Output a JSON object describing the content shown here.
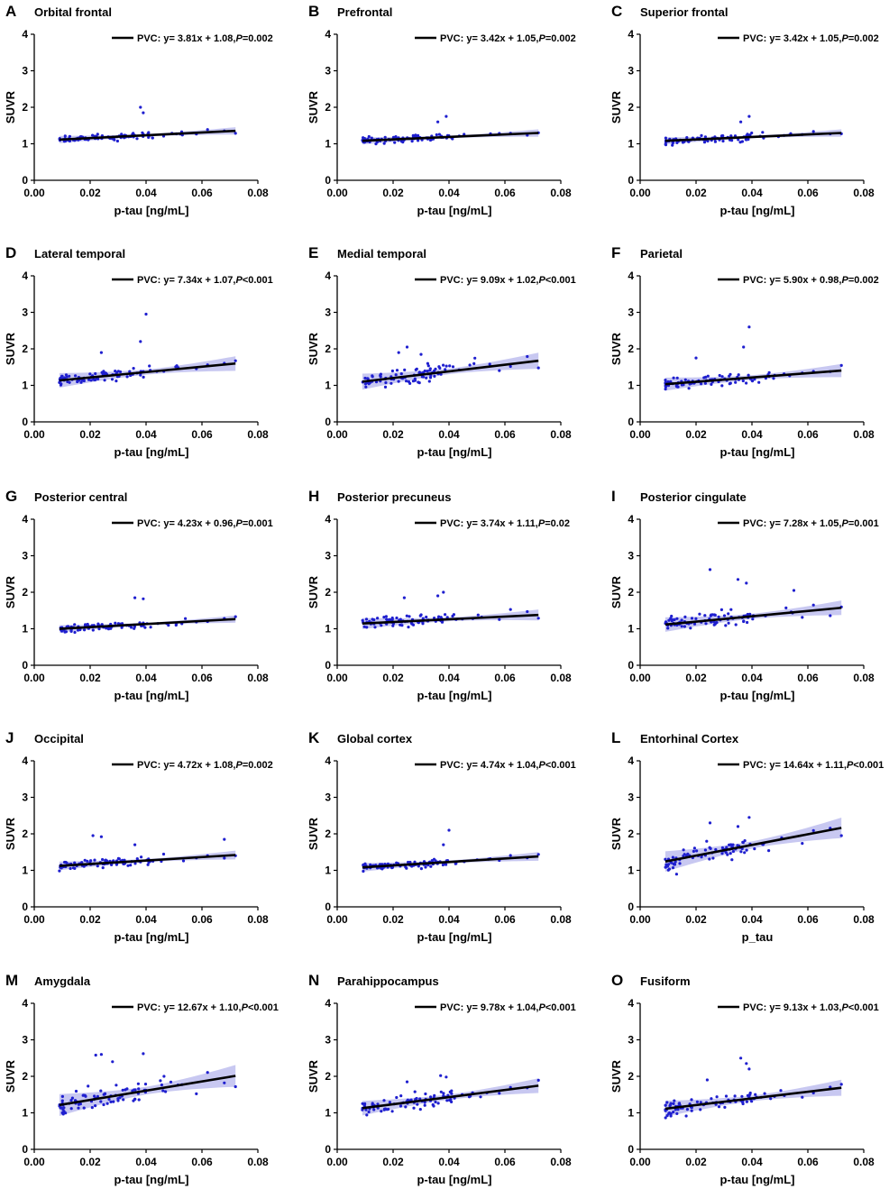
{
  "colors": {
    "points": "#1f1fcf",
    "band": "#9a9ae6",
    "line": "#000000"
  },
  "chart_data": [
    {
      "type": "scatter",
      "letter": "A",
      "title": "Orbital frontal",
      "xlabel": "p-tau [ng/mL]",
      "ylabel": "SUVR",
      "xlim": [
        0,
        0.08
      ],
      "ylim": [
        0,
        4
      ],
      "xticks": [
        "0.00",
        "0.02",
        "0.04",
        "0.06",
        "0.08"
      ],
      "yticks": [
        "0",
        "1",
        "2",
        "3",
        "4"
      ],
      "legend": "PVC: y= 3.81x + 1.08,",
      "p_label": "P",
      "p_value": "=0.002",
      "fit": {
        "slope": 3.81,
        "intercept": 1.08
      },
      "band": 0.1,
      "outliers": [
        [
          0.038,
          2.0
        ],
        [
          0.039,
          1.85
        ]
      ],
      "spread": 0.1,
      "seed": 1
    },
    {
      "type": "scatter",
      "letter": "B",
      "title": "Prefrontal",
      "xlabel": "p-tau [ng/mL]",
      "ylabel": "SUVR",
      "xlim": [
        0,
        0.08
      ],
      "ylim": [
        0,
        4
      ],
      "xticks": [
        "0.00",
        "0.02",
        "0.04",
        "0.06",
        "0.08"
      ],
      "yticks": [
        "0",
        "1",
        "2",
        "3",
        "4"
      ],
      "legend": "PVC: y= 3.42x + 1.05,",
      "p_label": "P",
      "p_value": "=0.002",
      "fit": {
        "slope": 3.42,
        "intercept": 1.05
      },
      "band": 0.1,
      "outliers": [
        [
          0.039,
          1.75
        ],
        [
          0.036,
          1.6
        ]
      ],
      "spread": 0.1,
      "seed": 2
    },
    {
      "type": "scatter",
      "letter": "C",
      "title": "Superior frontal",
      "xlabel": "p-tau [ng/mL]",
      "ylabel": "SUVR",
      "xlim": [
        0,
        0.08
      ],
      "ylim": [
        0,
        4
      ],
      "xticks": [
        "0.00",
        "0.02",
        "0.04",
        "0.06",
        "0.08"
      ],
      "yticks": [
        "0",
        "1",
        "2",
        "3",
        "4"
      ],
      "legend": "PVC: y= 3.42x + 1.05,",
      "p_label": "P",
      "p_value": "=0.002",
      "fit": {
        "slope": 3.42,
        "intercept": 1.05
      },
      "band": 0.1,
      "outliers": [
        [
          0.039,
          1.75
        ],
        [
          0.036,
          1.6
        ]
      ],
      "spread": 0.1,
      "seed": 3
    },
    {
      "type": "scatter",
      "letter": "D",
      "title": "Lateral temporal",
      "xlabel": "p-tau [ng/mL]",
      "ylabel": "SUVR",
      "xlim": [
        0,
        0.08
      ],
      "ylim": [
        0,
        4
      ],
      "xticks": [
        "0.00",
        "0.02",
        "0.04",
        "0.06",
        "0.08"
      ],
      "yticks": [
        "0",
        "1",
        "2",
        "3",
        "4"
      ],
      "legend": "PVC: y= 7.34x + 1.07,",
      "p_label": "P",
      "p_value": "<0.001",
      "fit": {
        "slope": 7.34,
        "intercept": 1.07
      },
      "band": 0.2,
      "outliers": [
        [
          0.04,
          2.95
        ],
        [
          0.038,
          2.2
        ],
        [
          0.024,
          1.9
        ]
      ],
      "spread": 0.15,
      "seed": 4
    },
    {
      "type": "scatter",
      "letter": "E",
      "title": "Medial temporal",
      "xlabel": "p-tau [ng/mL]",
      "ylabel": "SUVR",
      "xlim": [
        0,
        0.08
      ],
      "ylim": [
        0,
        4
      ],
      "xticks": [
        "0.00",
        "0.02",
        "0.04",
        "0.06",
        "0.08"
      ],
      "yticks": [
        "0",
        "1",
        "2",
        "3",
        "4"
      ],
      "legend": "PVC: y= 9.09x + 1.02,",
      "p_label": "P",
      "p_value": "<0.001",
      "fit": {
        "slope": 9.09,
        "intercept": 1.02
      },
      "band": 0.22,
      "outliers": [
        [
          0.025,
          2.05
        ],
        [
          0.022,
          1.9
        ],
        [
          0.03,
          1.85
        ]
      ],
      "spread": 0.25,
      "seed": 5
    },
    {
      "type": "scatter",
      "letter": "F",
      "title": "Parietal",
      "xlabel": "p-tau [ng/mL]",
      "ylabel": "SUVR",
      "xlim": [
        0,
        0.08
      ],
      "ylim": [
        0,
        4
      ],
      "xticks": [
        "0.00",
        "0.02",
        "0.04",
        "0.06",
        "0.08"
      ],
      "yticks": [
        "0",
        "1",
        "2",
        "3",
        "4"
      ],
      "legend": "PVC: y= 5.90x + 0.98,",
      "p_label": "P",
      "p_value": "=0.002",
      "fit": {
        "slope": 5.9,
        "intercept": 0.98
      },
      "band": 0.18,
      "outliers": [
        [
          0.039,
          2.6
        ],
        [
          0.037,
          2.05
        ],
        [
          0.02,
          1.75
        ]
      ],
      "spread": 0.15,
      "seed": 6
    },
    {
      "type": "scatter",
      "letter": "G",
      "title": "Posterior central",
      "xlabel": "p-tau [ng/mL]",
      "ylabel": "SUVR",
      "xlim": [
        0,
        0.08
      ],
      "ylim": [
        0,
        4
      ],
      "xticks": [
        "0.00",
        "0.02",
        "0.04",
        "0.06",
        "0.08"
      ],
      "yticks": [
        "0",
        "1",
        "2",
        "3",
        "4"
      ],
      "legend": "PVC: y= 4.23x + 0.96,",
      "p_label": "P",
      "p_value": "=0.001",
      "fit": {
        "slope": 4.23,
        "intercept": 0.96
      },
      "band": 0.1,
      "outliers": [
        [
          0.036,
          1.85
        ],
        [
          0.039,
          1.82
        ]
      ],
      "spread": 0.1,
      "seed": 7
    },
    {
      "type": "scatter",
      "letter": "H",
      "title": "Posterior precuneus",
      "xlabel": "p-tau [ng/mL]",
      "ylabel": "SUVR",
      "xlim": [
        0,
        0.08
      ],
      "ylim": [
        0,
        4
      ],
      "xticks": [
        "0.00",
        "0.02",
        "0.04",
        "0.06",
        "0.08"
      ],
      "yticks": [
        "0",
        "1",
        "2",
        "3",
        "4"
      ],
      "legend": "PVC: y= 3.74x + 1.11,",
      "p_label": "P",
      "p_value": "=0.02",
      "fit": {
        "slope": 3.74,
        "intercept": 1.11
      },
      "band": 0.15,
      "outliers": [
        [
          0.038,
          2.0
        ],
        [
          0.036,
          1.9
        ],
        [
          0.024,
          1.85
        ]
      ],
      "spread": 0.15,
      "seed": 8
    },
    {
      "type": "scatter",
      "letter": "I",
      "title": "Posterior cingulate",
      "xlabel": "p-tau [ng/mL]",
      "ylabel": "SUVR",
      "xlim": [
        0,
        0.08
      ],
      "ylim": [
        0,
        4
      ],
      "xticks": [
        "0.00",
        "0.02",
        "0.04",
        "0.06",
        "0.08"
      ],
      "yticks": [
        "0",
        "1",
        "2",
        "3",
        "4"
      ],
      "legend": "PVC: y= 7.28x + 1.05,",
      "p_label": "P",
      "p_value": "=0.001",
      "fit": {
        "slope": 7.28,
        "intercept": 1.05
      },
      "band": 0.2,
      "outliers": [
        [
          0.025,
          2.62
        ],
        [
          0.035,
          2.35
        ],
        [
          0.038,
          2.25
        ],
        [
          0.055,
          2.05
        ]
      ],
      "spread": 0.2,
      "seed": 9
    },
    {
      "type": "scatter",
      "letter": "J",
      "title": "Occipital",
      "xlabel": "p-tau [ng/mL]",
      "ylabel": "SUVR",
      "xlim": [
        0,
        0.08
      ],
      "ylim": [
        0,
        4
      ],
      "xticks": [
        "0.00",
        "0.02",
        "0.04",
        "0.06",
        "0.08"
      ],
      "yticks": [
        "0",
        "1",
        "2",
        "3",
        "4"
      ],
      "legend": "PVC: y= 4.72x + 1.08,",
      "p_label": "P",
      "p_value": "=0.002",
      "fit": {
        "slope": 4.72,
        "intercept": 1.08
      },
      "band": 0.12,
      "outliers": [
        [
          0.021,
          1.95
        ],
        [
          0.024,
          1.92
        ],
        [
          0.068,
          1.85
        ],
        [
          0.036,
          1.7
        ]
      ],
      "spread": 0.12,
      "seed": 10
    },
    {
      "type": "scatter",
      "letter": "K",
      "title": "Global cortex",
      "xlabel": "p-tau [ng/mL]",
      "ylabel": "SUVR",
      "xlim": [
        0,
        0.08
      ],
      "ylim": [
        0,
        4
      ],
      "xticks": [
        "0.00",
        "0.02",
        "0.04",
        "0.06",
        "0.08"
      ],
      "yticks": [
        "0",
        "1",
        "2",
        "3",
        "4"
      ],
      "legend": "PVC: y= 4.74x + 1.04,",
      "p_label": "P",
      "p_value": "<0.001",
      "fit": {
        "slope": 4.74,
        "intercept": 1.04
      },
      "band": 0.12,
      "outliers": [
        [
          0.04,
          2.1
        ],
        [
          0.038,
          1.7
        ]
      ],
      "spread": 0.1,
      "seed": 11
    },
    {
      "type": "scatter",
      "letter": "L",
      "title": "Entorhinal Cortex",
      "xlabel": "p_tau",
      "ylabel": "SUVR",
      "xlim": [
        0,
        0.08
      ],
      "ylim": [
        0,
        4
      ],
      "xticks": [
        "0.00",
        "0.02",
        "0.04",
        "0.06",
        "0.08"
      ],
      "yticks": [
        "0",
        "1",
        "2",
        "3",
        "4"
      ],
      "legend": "PVC: y= 14.64x + 1.11,",
      "p_label": "P",
      "p_value": "<0.001",
      "fit": {
        "slope": 14.64,
        "intercept": 1.11
      },
      "band": 0.28,
      "outliers": [
        [
          0.039,
          2.45
        ],
        [
          0.025,
          2.3
        ],
        [
          0.035,
          2.2
        ]
      ],
      "spread": 0.3,
      "seed": 12
    },
    {
      "type": "scatter",
      "letter": "M",
      "title": "Amygdala",
      "xlabel": "p-tau [ng/mL]",
      "ylabel": "SUVR",
      "xlim": [
        0,
        0.08
      ],
      "ylim": [
        0,
        4
      ],
      "xticks": [
        "0.00",
        "0.02",
        "0.04",
        "0.06",
        "0.08"
      ],
      "yticks": [
        "0",
        "1",
        "2",
        "3",
        "4"
      ],
      "legend": "PVC: y= 12.67x + 1.10,",
      "p_label": "P",
      "p_value": "<0.001",
      "fit": {
        "slope": 12.67,
        "intercept": 1.1
      },
      "band": 0.3,
      "outliers": [
        [
          0.024,
          2.6
        ],
        [
          0.022,
          2.58
        ],
        [
          0.039,
          2.62
        ],
        [
          0.028,
          2.4
        ]
      ],
      "spread": 0.3,
      "seed": 13
    },
    {
      "type": "scatter",
      "letter": "N",
      "title": "Parahippocampus",
      "xlabel": "p-tau [ng/mL]",
      "ylabel": "SUVR",
      "xlim": [
        0,
        0.08
      ],
      "ylim": [
        0,
        4
      ],
      "xticks": [
        "0.00",
        "0.02",
        "0.04",
        "0.06",
        "0.08"
      ],
      "yticks": [
        "0",
        "1",
        "2",
        "3",
        "4"
      ],
      "legend": "PVC: y= 9.78x + 1.04,",
      "p_label": "P",
      "p_value": "<0.001",
      "fit": {
        "slope": 9.78,
        "intercept": 1.04
      },
      "band": 0.2,
      "outliers": [
        [
          0.037,
          2.02
        ],
        [
          0.039,
          1.98
        ],
        [
          0.025,
          1.85
        ]
      ],
      "spread": 0.2,
      "seed": 14
    },
    {
      "type": "scatter",
      "letter": "O",
      "title": "Fusiform",
      "xlabel": "p-tau [ng/mL]",
      "ylabel": "SUVR",
      "xlim": [
        0,
        0.08
      ],
      "ylim": [
        0,
        4
      ],
      "xticks": [
        "0.00",
        "0.02",
        "0.04",
        "0.06",
        "0.08"
      ],
      "yticks": [
        "0",
        "1",
        "2",
        "3",
        "4"
      ],
      "legend": "PVC: y= 9.13x + 1.03,",
      "p_label": "P",
      "p_value": "<0.001",
      "fit": {
        "slope": 9.13,
        "intercept": 1.03
      },
      "band": 0.22,
      "outliers": [
        [
          0.036,
          2.5
        ],
        [
          0.038,
          2.35
        ],
        [
          0.039,
          2.2
        ],
        [
          0.024,
          1.9
        ]
      ],
      "spread": 0.2,
      "seed": 15
    }
  ]
}
